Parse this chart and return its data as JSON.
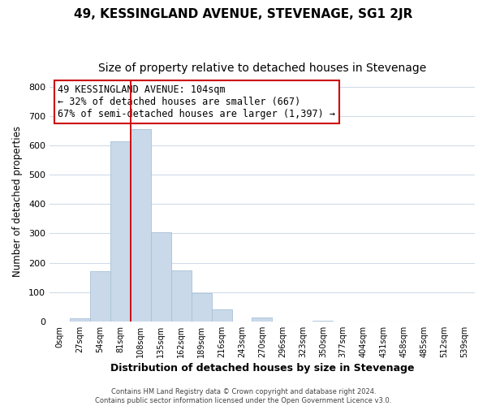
{
  "title": "49, KESSINGLAND AVENUE, STEVENAGE, SG1 2JR",
  "subtitle": "Size of property relative to detached houses in Stevenage",
  "xlabel": "Distribution of detached houses by size in Stevenage",
  "ylabel": "Number of detached properties",
  "bar_labels": [
    "0sqm",
    "27sqm",
    "54sqm",
    "81sqm",
    "108sqm",
    "135sqm",
    "162sqm",
    "189sqm",
    "216sqm",
    "243sqm",
    "270sqm",
    "296sqm",
    "323sqm",
    "350sqm",
    "377sqm",
    "404sqm",
    "431sqm",
    "458sqm",
    "485sqm",
    "512sqm",
    "539sqm"
  ],
  "bar_values": [
    0,
    10,
    170,
    615,
    655,
    305,
    175,
    97,
    40,
    0,
    12,
    0,
    0,
    3,
    0,
    0,
    0,
    0,
    0,
    0,
    0
  ],
  "bar_color": "#c9d9ea",
  "bar_edgecolor": "#a8c0d6",
  "vline_color": "#cc0000",
  "vline_x": 3.5,
  "annotation_text": "49 KESSINGLAND AVENUE: 104sqm\n← 32% of detached houses are smaller (667)\n67% of semi-detached houses are larger (1,397) →",
  "annotation_box_edgecolor": "#cc0000",
  "annotation_fontsize": 8.5,
  "ylim": [
    0,
    820
  ],
  "yticks": [
    0,
    100,
    200,
    300,
    400,
    500,
    600,
    700,
    800
  ],
  "footer": "Contains HM Land Registry data © Crown copyright and database right 2024.\nContains public sector information licensed under the Open Government Licence v3.0.",
  "title_fontsize": 11,
  "subtitle_fontsize": 10,
  "xlabel_fontsize": 9,
  "ylabel_fontsize": 8.5,
  "bg_color": "#ffffff",
  "grid_color": "#d0dce8"
}
